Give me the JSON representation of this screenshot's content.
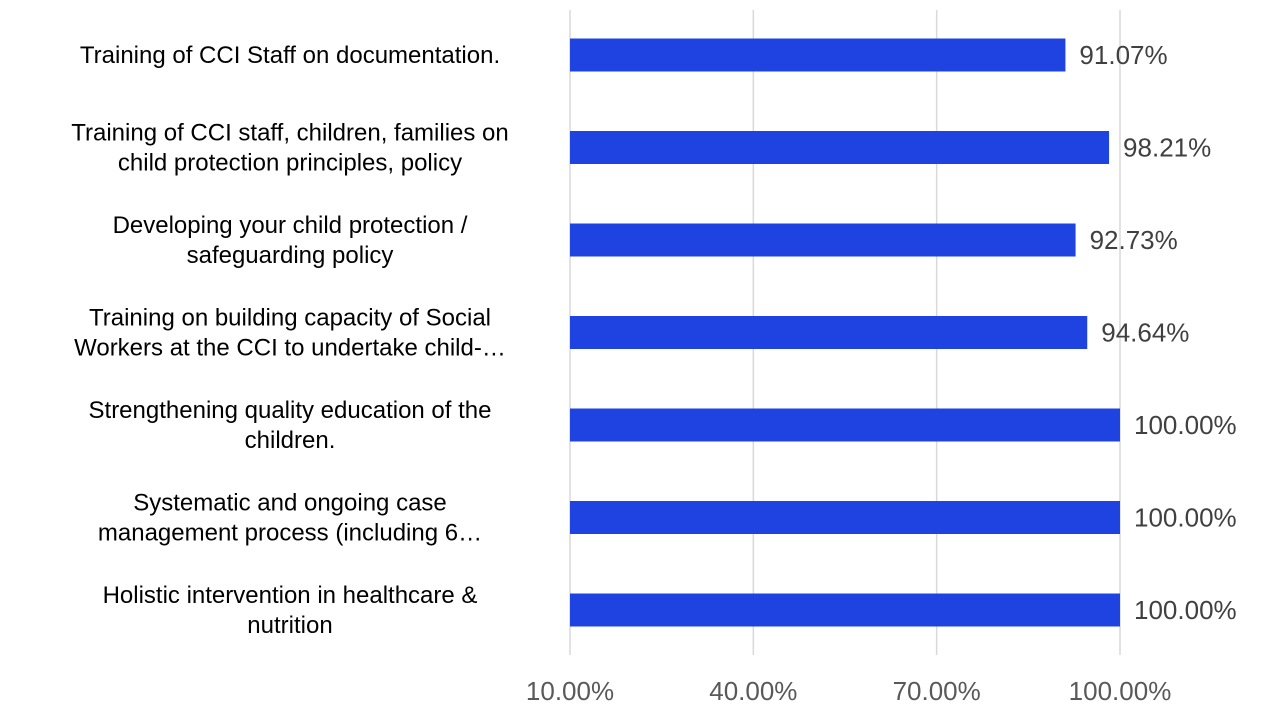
{
  "chart_data": {
    "type": "bar",
    "orientation": "horizontal",
    "title": "",
    "xlabel": "",
    "ylabel": "",
    "categories": [
      [
        "Training of CCI Staff on documentation."
      ],
      [
        "Training of CCI staff, children, families on",
        "child protection principles, policy"
      ],
      [
        "Developing your child protection /",
        "safeguarding policy"
      ],
      [
        "Training on building capacity of Social",
        "Workers at the CCI to undertake child-…"
      ],
      [
        "Strengthening quality education of the",
        "children."
      ],
      [
        "Systematic and ongoing case",
        "management process (including 6…"
      ],
      [
        "Holistic intervention in healthcare &",
        "nutrition"
      ]
    ],
    "values": [
      91.07,
      98.21,
      92.73,
      94.64,
      100.0,
      100.0,
      100.0
    ],
    "value_labels": [
      "91.07%",
      "98.21%",
      "92.73%",
      "94.64%",
      "100.00%",
      "100.00%",
      "100.00%"
    ],
    "xlim": [
      10,
      100
    ],
    "xticks": [
      10,
      40,
      70,
      100
    ],
    "xtick_labels": [
      "10.00%",
      "40.00%",
      "70.00%",
      "100.00%"
    ],
    "grid": true,
    "legend": "none",
    "bar_color": "#1f43e0"
  }
}
